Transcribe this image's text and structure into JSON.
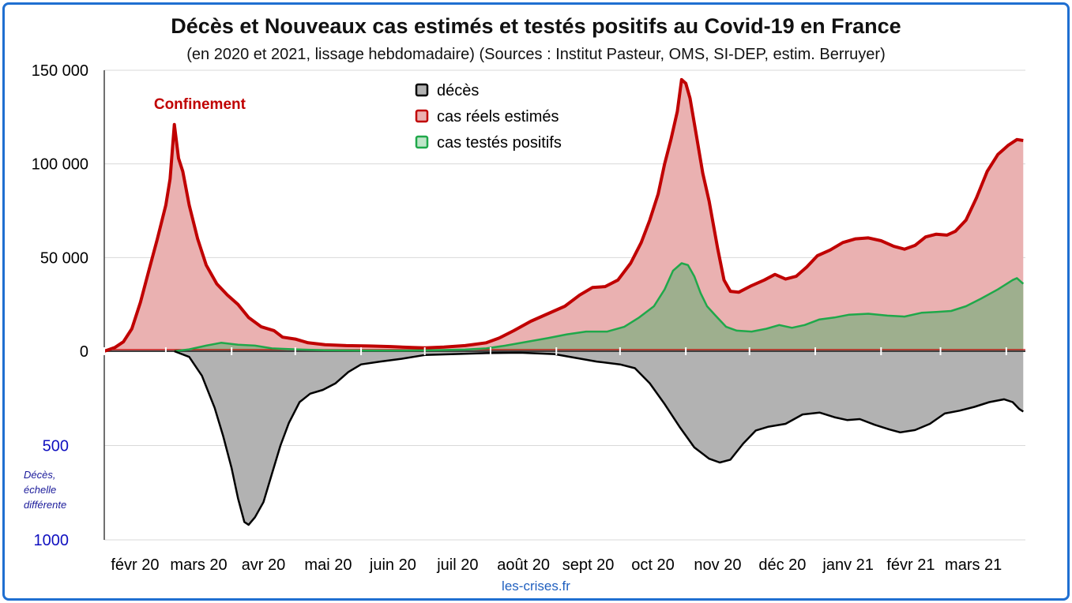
{
  "title": "Décès et Nouveaux cas estimés et testés positifs au Covid-19 en France",
  "subtitle": "(en 2020 et 2021, lissage hebdomadaire) (Sources : Institut Pasteur, OMS, SI-DEP, estim. Berruyer)",
  "source": "les-crises.fr",
  "deaths_axis_note": [
    "Décès,",
    "échelle",
    "différente"
  ],
  "annotation": "Confinement",
  "colors": {
    "real": "#c00000",
    "real_fill": "#eab1b1",
    "tested": "#1fa84a",
    "tested_fill": "#9eaf8e",
    "deaths": "#000000",
    "deaths_fill": "#b2b2b2",
    "frame": "#1f6fd1",
    "deaths_axis": "#1010c0"
  },
  "chart_data": {
    "type": "area",
    "x_tick_labels": [
      "févr 20",
      "mars 20",
      "avr 20",
      "mai 20",
      "juin 20",
      "juil 20",
      "août 20",
      "sept 20",
      "oct 20",
      "nov 20",
      "déc 20",
      "janv 21",
      "févr 21",
      "mars 21"
    ],
    "y_ticks_cases": [
      0,
      50000,
      100000,
      150000
    ],
    "y_tick_labels_cases": [
      "0",
      "50 000",
      "100 000",
      "150 000"
    ],
    "y_ticks_deaths": [
      500,
      1000
    ],
    "y_tick_labels_deaths": [
      "500",
      "1000"
    ],
    "ylim_cases": [
      0,
      150000
    ],
    "ylim_deaths": [
      0,
      1000
    ],
    "legend": [
      {
        "label": "décès",
        "swatch": "deaths"
      },
      {
        "label": "cas réels estimés",
        "swatch": "real"
      },
      {
        "label": "cas testés positifs",
        "swatch": "tested"
      }
    ],
    "series": [
      {
        "name": "cas réels estimés",
        "key": "real",
        "points": [
          [
            "2020-02-01",
            0
          ],
          [
            "2020-02-06",
            2000
          ],
          [
            "2020-02-10",
            5000
          ],
          [
            "2020-02-14",
            12000
          ],
          [
            "2020-02-18",
            26000
          ],
          [
            "2020-02-22",
            43000
          ],
          [
            "2020-02-26",
            60000
          ],
          [
            "2020-03-01",
            78000
          ],
          [
            "2020-03-03",
            92000
          ],
          [
            "2020-03-05",
            121000
          ],
          [
            "2020-03-07",
            103000
          ],
          [
            "2020-03-09",
            96000
          ],
          [
            "2020-03-12",
            78000
          ],
          [
            "2020-03-16",
            60000
          ],
          [
            "2020-03-20",
            46000
          ],
          [
            "2020-03-25",
            36000
          ],
          [
            "2020-03-30",
            30000
          ],
          [
            "2020-04-04",
            25000
          ],
          [
            "2020-04-09",
            18000
          ],
          [
            "2020-04-15",
            13000
          ],
          [
            "2020-04-21",
            11000
          ],
          [
            "2020-04-25",
            7500
          ],
          [
            "2020-05-01",
            6500
          ],
          [
            "2020-05-07",
            4500
          ],
          [
            "2020-05-15",
            3500
          ],
          [
            "2020-05-25",
            3000
          ],
          [
            "2020-06-05",
            2800
          ],
          [
            "2020-06-15",
            2500
          ],
          [
            "2020-06-25",
            2000
          ],
          [
            "2020-07-01",
            1800
          ],
          [
            "2020-07-10",
            2200
          ],
          [
            "2020-07-20",
            3000
          ],
          [
            "2020-07-30",
            4500
          ],
          [
            "2020-08-05",
            7000
          ],
          [
            "2020-08-12",
            11000
          ],
          [
            "2020-08-20",
            16000
          ],
          [
            "2020-08-28",
            20000
          ],
          [
            "2020-09-05",
            24000
          ],
          [
            "2020-09-12",
            30000
          ],
          [
            "2020-09-18",
            34000
          ],
          [
            "2020-09-24",
            34500
          ],
          [
            "2020-09-30",
            38000
          ],
          [
            "2020-10-06",
            47000
          ],
          [
            "2020-10-11",
            58000
          ],
          [
            "2020-10-15",
            70000
          ],
          [
            "2020-10-19",
            84000
          ],
          [
            "2020-10-22",
            100000
          ],
          [
            "2020-10-25",
            113000
          ],
          [
            "2020-10-28",
            128000
          ],
          [
            "2020-10-30",
            145000
          ],
          [
            "2020-11-01",
            143000
          ],
          [
            "2020-11-03",
            135000
          ],
          [
            "2020-11-06",
            115000
          ],
          [
            "2020-11-09",
            95000
          ],
          [
            "2020-11-12",
            80000
          ],
          [
            "2020-11-16",
            55000
          ],
          [
            "2020-11-19",
            38000
          ],
          [
            "2020-11-22",
            32000
          ],
          [
            "2020-11-26",
            31500
          ],
          [
            "2020-12-02",
            35000
          ],
          [
            "2020-12-08",
            38000
          ],
          [
            "2020-12-13",
            41000
          ],
          [
            "2020-12-18",
            38500
          ],
          [
            "2020-12-23",
            40000
          ],
          [
            "2020-12-28",
            45000
          ],
          [
            "2021-01-02",
            51000
          ],
          [
            "2021-01-08",
            54000
          ],
          [
            "2021-01-14",
            58000
          ],
          [
            "2021-01-20",
            60000
          ],
          [
            "2021-01-26",
            60500
          ],
          [
            "2021-02-01",
            59000
          ],
          [
            "2021-02-07",
            56000
          ],
          [
            "2021-02-12",
            54500
          ],
          [
            "2021-02-17",
            56500
          ],
          [
            "2021-02-22",
            61000
          ],
          [
            "2021-02-27",
            62500
          ],
          [
            "2021-03-04",
            62000
          ],
          [
            "2021-03-08",
            64000
          ],
          [
            "2021-03-13",
            70000
          ],
          [
            "2021-03-18",
            82000
          ],
          [
            "2021-03-23",
            96000
          ],
          [
            "2021-03-28",
            105000
          ],
          [
            "2021-04-02",
            110000
          ],
          [
            "2021-04-06",
            113000
          ],
          [
            "2021-04-09",
            112500
          ]
        ]
      },
      {
        "name": "cas testés positifs",
        "key": "tested",
        "points": [
          [
            "2020-03-05",
            0
          ],
          [
            "2020-03-12",
            1000
          ],
          [
            "2020-03-20",
            3000
          ],
          [
            "2020-03-27",
            4500
          ],
          [
            "2020-04-04",
            3500
          ],
          [
            "2020-04-12",
            3000
          ],
          [
            "2020-04-20",
            1500
          ],
          [
            "2020-05-01",
            1000
          ],
          [
            "2020-05-15",
            500
          ],
          [
            "2020-06-01",
            400
          ],
          [
            "2020-06-20",
            400
          ],
          [
            "2020-07-05",
            500
          ],
          [
            "2020-07-20",
            900
          ],
          [
            "2020-07-30",
            1500
          ],
          [
            "2020-08-08",
            3000
          ],
          [
            "2020-08-18",
            5000
          ],
          [
            "2020-08-28",
            7000
          ],
          [
            "2020-09-06",
            9000
          ],
          [
            "2020-09-15",
            10500
          ],
          [
            "2020-09-25",
            10500
          ],
          [
            "2020-10-03",
            13000
          ],
          [
            "2020-10-10",
            18000
          ],
          [
            "2020-10-17",
            24000
          ],
          [
            "2020-10-22",
            33000
          ],
          [
            "2020-10-26",
            43000
          ],
          [
            "2020-10-30",
            47000
          ],
          [
            "2020-11-02",
            46000
          ],
          [
            "2020-11-05",
            40000
          ],
          [
            "2020-11-08",
            31000
          ],
          [
            "2020-11-11",
            24000
          ],
          [
            "2020-11-15",
            19000
          ],
          [
            "2020-11-20",
            13000
          ],
          [
            "2020-11-25",
            11000
          ],
          [
            "2020-12-02",
            10500
          ],
          [
            "2020-12-09",
            12000
          ],
          [
            "2020-12-15",
            14000
          ],
          [
            "2020-12-21",
            12500
          ],
          [
            "2020-12-27",
            14000
          ],
          [
            "2021-01-03",
            17000
          ],
          [
            "2021-01-10",
            18000
          ],
          [
            "2021-01-17",
            19500
          ],
          [
            "2021-01-26",
            20000
          ],
          [
            "2021-02-04",
            19000
          ],
          [
            "2021-02-12",
            18500
          ],
          [
            "2021-02-20",
            20500
          ],
          [
            "2021-02-27",
            21000
          ],
          [
            "2021-03-06",
            21500
          ],
          [
            "2021-03-13",
            24000
          ],
          [
            "2021-03-20",
            28000
          ],
          [
            "2021-03-28",
            33000
          ],
          [
            "2021-04-04",
            38000
          ],
          [
            "2021-04-06",
            39000
          ],
          [
            "2021-04-09",
            36000
          ]
        ]
      },
      {
        "name": "décès",
        "key": "deaths",
        "points": [
          [
            "2020-03-05",
            0
          ],
          [
            "2020-03-12",
            30
          ],
          [
            "2020-03-18",
            130
          ],
          [
            "2020-03-24",
            300
          ],
          [
            "2020-03-28",
            450
          ],
          [
            "2020-04-01",
            620
          ],
          [
            "2020-04-04",
            780
          ],
          [
            "2020-04-07",
            905
          ],
          [
            "2020-04-09",
            920
          ],
          [
            "2020-04-12",
            880
          ],
          [
            "2020-04-16",
            800
          ],
          [
            "2020-04-20",
            650
          ],
          [
            "2020-04-24",
            500
          ],
          [
            "2020-04-28",
            380
          ],
          [
            "2020-05-03",
            270
          ],
          [
            "2020-05-08",
            225
          ],
          [
            "2020-05-14",
            205
          ],
          [
            "2020-05-20",
            170
          ],
          [
            "2020-05-26",
            110
          ],
          [
            "2020-06-01",
            70
          ],
          [
            "2020-06-10",
            55
          ],
          [
            "2020-06-20",
            40
          ],
          [
            "2020-07-01",
            20
          ],
          [
            "2020-07-15",
            15
          ],
          [
            "2020-07-30",
            10
          ],
          [
            "2020-08-15",
            8
          ],
          [
            "2020-08-31",
            15
          ],
          [
            "2020-09-10",
            35
          ],
          [
            "2020-09-20",
            55
          ],
          [
            "2020-10-01",
            70
          ],
          [
            "2020-10-08",
            90
          ],
          [
            "2020-10-15",
            170
          ],
          [
            "2020-10-22",
            280
          ],
          [
            "2020-10-29",
            400
          ],
          [
            "2020-11-05",
            510
          ],
          [
            "2020-11-12",
            570
          ],
          [
            "2020-11-17",
            590
          ],
          [
            "2020-11-22",
            575
          ],
          [
            "2020-11-28",
            490
          ],
          [
            "2020-12-04",
            420
          ],
          [
            "2020-12-10",
            400
          ],
          [
            "2020-12-18",
            385
          ],
          [
            "2020-12-26",
            335
          ],
          [
            "2021-01-03",
            325
          ],
          [
            "2021-01-10",
            350
          ],
          [
            "2021-01-16",
            365
          ],
          [
            "2021-01-22",
            360
          ],
          [
            "2021-01-29",
            390
          ],
          [
            "2021-02-05",
            415
          ],
          [
            "2021-02-10",
            430
          ],
          [
            "2021-02-17",
            418
          ],
          [
            "2021-02-24",
            385
          ],
          [
            "2021-03-03",
            330
          ],
          [
            "2021-03-10",
            315
          ],
          [
            "2021-03-17",
            295
          ],
          [
            "2021-03-24",
            270
          ],
          [
            "2021-03-31",
            255
          ],
          [
            "2021-04-04",
            270
          ],
          [
            "2021-04-07",
            305
          ],
          [
            "2021-04-09",
            320
          ]
        ]
      }
    ],
    "annotations": [
      {
        "text": "Confinement",
        "x": "2020-03-17"
      }
    ],
    "grid": true,
    "legend_position": "top-center"
  }
}
